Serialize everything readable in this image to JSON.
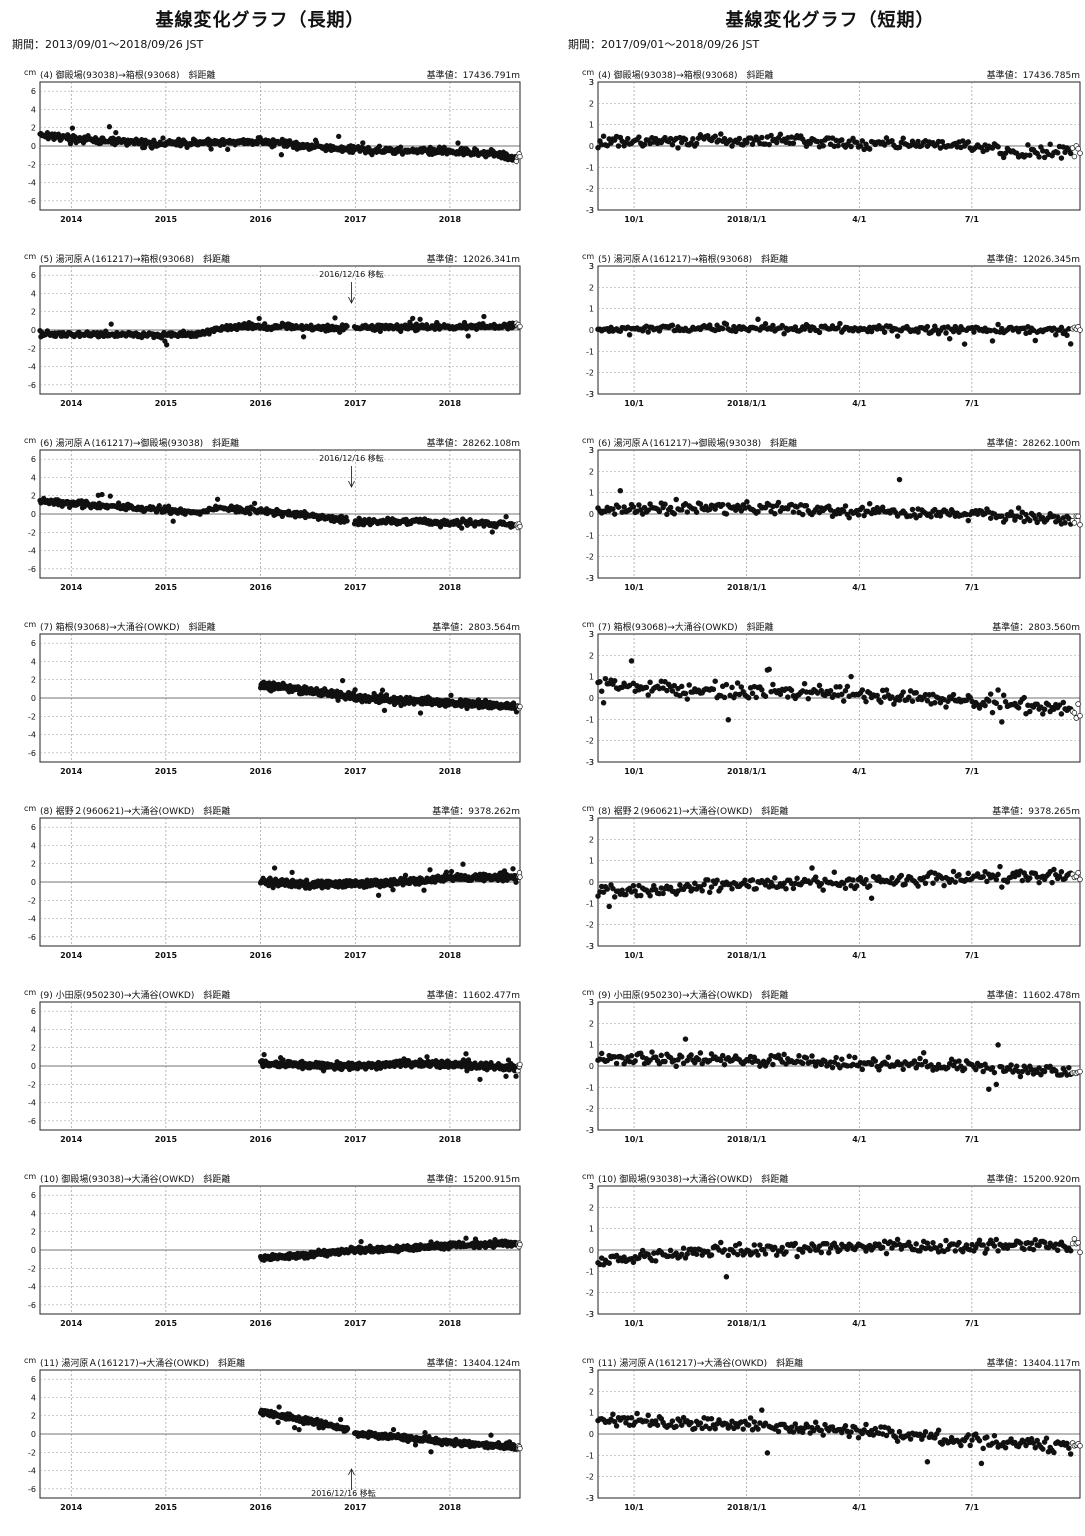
{
  "long": {
    "title": "基線変化グラフ（長期）",
    "period": "期間：2013/09/01～2018/09/26 JST",
    "xrange": [
      2013.67,
      2018.74
    ],
    "yticks": [
      6,
      4,
      2,
      0,
      -2,
      -4,
      -6
    ],
    "ylim": [
      -7,
      7
    ],
    "xticks": [
      {
        "v": 2014,
        "label": "2014"
      },
      {
        "v": 2015,
        "label": "2015"
      },
      {
        "v": 2016,
        "label": "2016"
      },
      {
        "v": 2017,
        "label": "2017"
      },
      {
        "v": 2018,
        "label": "2018"
      }
    ]
  },
  "short": {
    "title": "基線変化グラフ（短期）",
    "period": "期間：2017/09/01～2018/09/26 JST",
    "xrange": [
      2017.67,
      2018.74
    ],
    "yticks": [
      3,
      2,
      1,
      0,
      -1,
      -2,
      -3
    ],
    "ylim": [
      -3,
      3
    ],
    "xticks": [
      {
        "v": 2017.75,
        "label": "10/1"
      },
      {
        "v": 2018.0,
        "label": "2018/1/1"
      },
      {
        "v": 2018.25,
        "label": "4/1"
      },
      {
        "v": 2018.5,
        "label": "7/1"
      }
    ]
  },
  "unit": "cm",
  "chart_data": [
    {
      "type": "scatter",
      "column": "long",
      "label": "(4) 御殿場(93038)→箱根(93068)　斜距離",
      "base": "基準値：17436.791m",
      "ylabel": "cm",
      "xlim": [
        2013.67,
        2018.74
      ],
      "ylim": [
        -7,
        7
      ],
      "x": [
        2013.67,
        2014.0,
        2014.5,
        2015.0,
        2015.5,
        2016.0,
        2016.5,
        2017.0,
        2017.5,
        2018.0,
        2018.5,
        2018.74
      ],
      "y": [
        1.3,
        0.8,
        0.5,
        0.2,
        0.4,
        0.5,
        0.0,
        -0.4,
        -0.5,
        -0.6,
        -0.9,
        -1.3
      ],
      "spread": 0.4
    },
    {
      "type": "scatter",
      "column": "short",
      "label": "(4) 御殿場(93038)→箱根(93068)　斜距離",
      "base": "基準値：17436.785m",
      "ylabel": "cm",
      "xlim": [
        2017.67,
        2018.74
      ],
      "ylim": [
        -3,
        3
      ],
      "x": [
        2017.67,
        2017.9,
        2018.1,
        2018.3,
        2018.5,
        2018.6,
        2018.74
      ],
      "y": [
        0.2,
        0.3,
        0.3,
        0.1,
        0.0,
        -0.3,
        -0.3
      ],
      "spread": 0.3
    },
    {
      "type": "scatter",
      "column": "long",
      "label": "(5) 湯河原Ａ(161217)→箱根(93068)　斜距離",
      "base": "基準値：12026.341m",
      "ylabel": "cm",
      "xlim": [
        2013.67,
        2018.74
      ],
      "ylim": [
        -7,
        7
      ],
      "x": [
        2013.67,
        2014.5,
        2015.3,
        2015.6,
        2016.0,
        2016.9,
        2017.0,
        2018.0,
        2018.74
      ],
      "y": [
        -0.4,
        -0.5,
        -0.5,
        0.3,
        0.4,
        0.2,
        0.3,
        0.3,
        0.5
      ],
      "spread": 0.3,
      "gap": [
        2016.92,
        2016.99
      ],
      "annotation": {
        "text": "2016/12/16 移転",
        "x": 2016.96,
        "dir": "down"
      }
    },
    {
      "type": "scatter",
      "column": "short",
      "label": "(5) 湯河原Ａ(161217)→箱根(93068)　斜距離",
      "base": "基準値：12026.345m",
      "ylabel": "cm",
      "xlim": [
        2017.67,
        2018.74
      ],
      "ylim": [
        -3,
        3
      ],
      "x": [
        2017.67,
        2018.0,
        2018.5,
        2018.74
      ],
      "y": [
        0.0,
        0.1,
        0.0,
        0.0
      ],
      "spread": 0.2
    },
    {
      "type": "scatter",
      "column": "long",
      "label": "(6) 湯河原Ａ(161217)→御殿場(93038)　斜距離",
      "base": "基準値：28262.108m",
      "ylabel": "cm",
      "xlim": [
        2013.67,
        2018.74
      ],
      "ylim": [
        -7,
        7
      ],
      "x": [
        2013.67,
        2014.5,
        2015.3,
        2015.6,
        2016.0,
        2016.9,
        2017.0,
        2018.0,
        2018.74
      ],
      "y": [
        1.4,
        0.8,
        0.2,
        0.6,
        0.4,
        -0.6,
        -0.8,
        -0.9,
        -1.2
      ],
      "spread": 0.35,
      "gap": [
        2016.92,
        2016.99
      ],
      "annotation": {
        "text": "2016/12/16 移転",
        "x": 2016.96,
        "dir": "down"
      }
    },
    {
      "type": "scatter",
      "column": "short",
      "label": "(6) 湯河原Ａ(161217)→御殿場(93038)　斜距離",
      "base": "基準値：28262.100m",
      "ylabel": "cm",
      "xlim": [
        2017.67,
        2018.74
      ],
      "ylim": [
        -3,
        3
      ],
      "x": [
        2017.67,
        2018.0,
        2018.5,
        2018.74
      ],
      "y": [
        0.2,
        0.3,
        0.0,
        -0.3
      ],
      "spread": 0.3
    },
    {
      "type": "scatter",
      "column": "long",
      "label": "(7) 箱根(93068)→大涌谷(OWKD)　斜距離",
      "base": "基準値：2803.564m",
      "ylabel": "cm",
      "xlim": [
        2013.67,
        2018.74
      ],
      "ylim": [
        -7,
        7
      ],
      "x": [
        2016.0,
        2016.5,
        2017.0,
        2017.5,
        2018.0,
        2018.74
      ],
      "y": [
        1.4,
        0.8,
        0.1,
        -0.3,
        -0.5,
        -1.0
      ],
      "spread": 0.4
    },
    {
      "type": "scatter",
      "column": "short",
      "label": "(7) 箱根(93068)→大涌谷(OWKD)　斜距離",
      "base": "基準値：2803.560m",
      "ylabel": "cm",
      "xlim": [
        2017.67,
        2018.74
      ],
      "ylim": [
        -3,
        3
      ],
      "x": [
        2017.67,
        2017.9,
        2018.2,
        2018.5,
        2018.74
      ],
      "y": [
        0.6,
        0.4,
        0.2,
        -0.1,
        -0.6
      ],
      "spread": 0.35
    },
    {
      "type": "scatter",
      "column": "long",
      "label": "(8) 裾野２(960621)→大涌谷(OWKD)　斜距離",
      "base": "基準値：9378.262m",
      "ylabel": "cm",
      "xlim": [
        2013.67,
        2018.74
      ],
      "ylim": [
        -7,
        7
      ],
      "x": [
        2016.0,
        2016.5,
        2017.0,
        2017.5,
        2018.0,
        2018.74
      ],
      "y": [
        0.1,
        -0.3,
        -0.2,
        0.0,
        0.4,
        0.6
      ],
      "spread": 0.35
    },
    {
      "type": "scatter",
      "column": "short",
      "label": "(8) 裾野２(960621)→大涌谷(OWKD)　斜距離",
      "base": "基準値：9378.265m",
      "ylabel": "cm",
      "xlim": [
        2017.67,
        2018.74
      ],
      "ylim": [
        -3,
        3
      ],
      "x": [
        2017.67,
        2017.9,
        2018.2,
        2018.5,
        2018.74
      ],
      "y": [
        -0.5,
        -0.2,
        0.0,
        0.2,
        0.3
      ],
      "spread": 0.3
    },
    {
      "type": "scatter",
      "column": "long",
      "label": "(9) 小田原(950230)→大涌谷(OWKD)　斜距離",
      "base": "基準値：11602.477m",
      "ylabel": "cm",
      "xlim": [
        2013.67,
        2018.74
      ],
      "ylim": [
        -7,
        7
      ],
      "x": [
        2016.0,
        2016.5,
        2017.0,
        2017.5,
        2018.0,
        2018.74
      ],
      "y": [
        0.3,
        0.1,
        0.0,
        0.3,
        0.2,
        -0.2
      ],
      "spread": 0.35
    },
    {
      "type": "scatter",
      "column": "short",
      "label": "(9) 小田原(950230)→大涌谷(OWKD)　斜距離",
      "base": "基準値：11602.478m",
      "ylabel": "cm",
      "xlim": [
        2017.67,
        2018.74
      ],
      "ylim": [
        -3,
        3
      ],
      "x": [
        2017.67,
        2018.0,
        2018.5,
        2018.74
      ],
      "y": [
        0.4,
        0.3,
        0.0,
        -0.4
      ],
      "spread": 0.3
    },
    {
      "type": "scatter",
      "column": "long",
      "label": "(10) 御殿場(93038)→大涌谷(OWKD)　斜距離",
      "base": "基準値：15200.915m",
      "ylabel": "cm",
      "xlim": [
        2013.67,
        2018.74
      ],
      "ylim": [
        -7,
        7
      ],
      "x": [
        2016.0,
        2016.5,
        2017.0,
        2017.5,
        2018.0,
        2018.74
      ],
      "y": [
        -0.9,
        -0.5,
        0.0,
        0.2,
        0.5,
        0.7
      ],
      "spread": 0.3
    },
    {
      "type": "scatter",
      "column": "short",
      "label": "(10) 御殿場(93038)→大涌谷(OWKD)　斜距離",
      "base": "基準値：15200.920m",
      "ylabel": "cm",
      "xlim": [
        2017.67,
        2018.74
      ],
      "ylim": [
        -3,
        3
      ],
      "x": [
        2017.67,
        2017.9,
        2018.2,
        2018.5,
        2018.74
      ],
      "y": [
        -0.5,
        -0.1,
        0.1,
        0.2,
        0.2
      ],
      "spread": 0.3
    },
    {
      "type": "scatter",
      "column": "long",
      "label": "(11) 湯河原Ａ(161217)→大涌谷(OWKD)　斜距離",
      "base": "基準値：13404.124m",
      "ylabel": "cm",
      "xlim": [
        2013.67,
        2018.74
      ],
      "ylim": [
        -7,
        7
      ],
      "x": [
        2016.0,
        2016.5,
        2016.9,
        2017.0,
        2017.5,
        2018.0,
        2018.74
      ],
      "y": [
        2.4,
        1.4,
        0.6,
        0.0,
        -0.4,
        -0.9,
        -1.5
      ],
      "spread": 0.3,
      "gap": [
        2016.92,
        2016.99
      ],
      "annotation": {
        "text": "2016/12/16 移転",
        "x": 2016.96,
        "dir": "up"
      }
    },
    {
      "type": "scatter",
      "column": "short",
      "label": "(11) 湯河原Ａ(161217)→大涌谷(OWKD)　斜距離",
      "base": "基準値：13404.117m",
      "ylabel": "cm",
      "xlim": [
        2017.67,
        2018.74
      ],
      "ylim": [
        -3,
        3
      ],
      "x": [
        2017.67,
        2017.9,
        2018.2,
        2018.5,
        2018.74
      ],
      "y": [
        0.7,
        0.5,
        0.2,
        -0.3,
        -0.6
      ],
      "spread": 0.3
    }
  ]
}
